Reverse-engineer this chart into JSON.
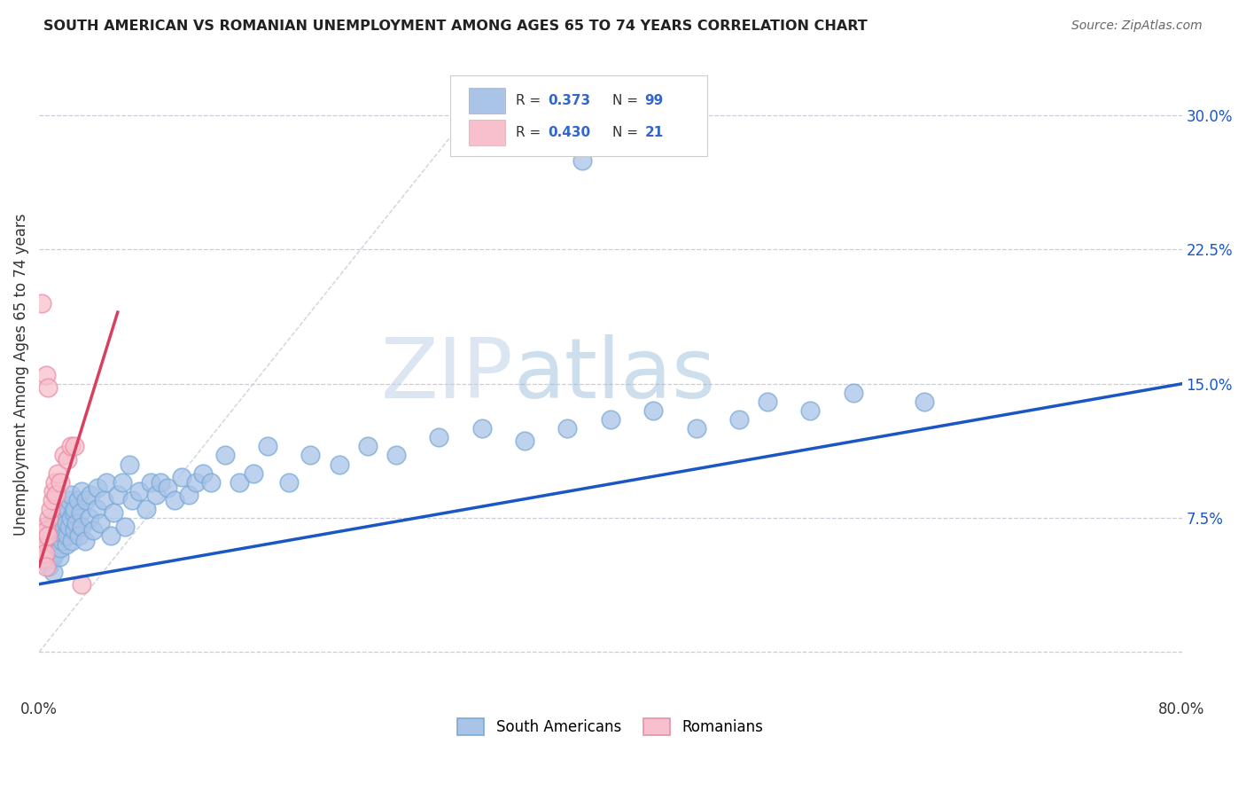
{
  "title": "SOUTH AMERICAN VS ROMANIAN UNEMPLOYMENT AMONG AGES 65 TO 74 YEARS CORRELATION CHART",
  "source": "Source: ZipAtlas.com",
  "ylabel": "Unemployment Among Ages 65 to 74 years",
  "xlim": [
    0.0,
    0.8
  ],
  "ylim": [
    -0.025,
    0.335
  ],
  "xticks": [
    0.0,
    0.1,
    0.2,
    0.3,
    0.4,
    0.5,
    0.6,
    0.7,
    0.8
  ],
  "xticklabels": [
    "0.0%",
    "",
    "",
    "",
    "",
    "",
    "",
    "",
    "80.0%"
  ],
  "ytick_right_labels": [
    "30.0%",
    "22.5%",
    "15.0%",
    "7.5%",
    ""
  ],
  "ytick_right_values": [
    0.3,
    0.225,
    0.15,
    0.075,
    0.0
  ],
  "color_south_american_face": "#aac4e8",
  "color_south_american_edge": "#7aaad8",
  "color_romanian_face": "#f8c0cc",
  "color_romanian_edge": "#e890a8",
  "color_line_blue": "#1a56c4",
  "color_line_red": "#d84060",
  "color_legend_text": "#3366cc",
  "color_grid": "#c8cdd8",
  "color_diag": "#c0c8d4",
  "watermark_zip": "ZIP",
  "watermark_atlas": "atlas",
  "south_american_x": [
    0.003,
    0.004,
    0.005,
    0.005,
    0.006,
    0.007,
    0.007,
    0.008,
    0.008,
    0.009,
    0.009,
    0.01,
    0.01,
    0.01,
    0.01,
    0.011,
    0.011,
    0.012,
    0.012,
    0.013,
    0.013,
    0.014,
    0.014,
    0.015,
    0.015,
    0.015,
    0.016,
    0.016,
    0.017,
    0.017,
    0.018,
    0.018,
    0.019,
    0.019,
    0.02,
    0.02,
    0.021,
    0.021,
    0.022,
    0.022,
    0.023,
    0.024,
    0.025,
    0.025,
    0.026,
    0.027,
    0.028,
    0.029,
    0.03,
    0.03,
    0.032,
    0.033,
    0.035,
    0.036,
    0.038,
    0.04,
    0.041,
    0.043,
    0.045,
    0.047,
    0.05,
    0.052,
    0.055,
    0.058,
    0.06,
    0.063,
    0.065,
    0.07,
    0.075,
    0.078,
    0.082,
    0.085,
    0.09,
    0.095,
    0.1,
    0.105,
    0.11,
    0.115,
    0.12,
    0.13,
    0.14,
    0.15,
    0.16,
    0.175,
    0.19,
    0.21,
    0.23,
    0.25,
    0.28,
    0.31,
    0.34,
    0.37,
    0.4,
    0.43,
    0.46,
    0.49,
    0.51,
    0.54,
    0.57
  ],
  "south_american_y": [
    0.055,
    0.06,
    0.065,
    0.05,
    0.068,
    0.048,
    0.06,
    0.055,
    0.072,
    0.058,
    0.052,
    0.07,
    0.064,
    0.058,
    0.045,
    0.068,
    0.055,
    0.075,
    0.062,
    0.07,
    0.058,
    0.065,
    0.053,
    0.072,
    0.068,
    0.058,
    0.075,
    0.062,
    0.07,
    0.082,
    0.065,
    0.078,
    0.06,
    0.072,
    0.08,
    0.065,
    0.085,
    0.07,
    0.075,
    0.088,
    0.062,
    0.078,
    0.068,
    0.08,
    0.072,
    0.085,
    0.065,
    0.078,
    0.09,
    0.07,
    0.062,
    0.085,
    0.075,
    0.088,
    0.068,
    0.08,
    0.092,
    0.072,
    0.085,
    0.095,
    0.065,
    0.078,
    0.088,
    0.095,
    0.07,
    0.105,
    0.085,
    0.09,
    0.08,
    0.095,
    0.088,
    0.095,
    0.092,
    0.085,
    0.098,
    0.088,
    0.095,
    0.1,
    0.095,
    0.11,
    0.095,
    0.1,
    0.115,
    0.095,
    0.11,
    0.105,
    0.115,
    0.11,
    0.12,
    0.125,
    0.118,
    0.125,
    0.13,
    0.135,
    0.125,
    0.13,
    0.14,
    0.135,
    0.145
  ],
  "south_american_outlier_x": [
    0.38
  ],
  "south_american_outlier_y": [
    0.275
  ],
  "south_american_high_x": [
    0.62
  ],
  "south_american_high_y": [
    0.14
  ],
  "romanian_x": [
    0.002,
    0.003,
    0.003,
    0.004,
    0.004,
    0.005,
    0.005,
    0.006,
    0.007,
    0.008,
    0.009,
    0.01,
    0.011,
    0.012,
    0.013,
    0.015,
    0.017,
    0.02,
    0.022,
    0.025,
    0.03
  ],
  "romanian_y": [
    0.058,
    0.063,
    0.052,
    0.07,
    0.055,
    0.068,
    0.048,
    0.065,
    0.075,
    0.08,
    0.085,
    0.09,
    0.095,
    0.088,
    0.1,
    0.095,
    0.11,
    0.108,
    0.115,
    0.115,
    0.038
  ],
  "romanian_outlier_x": [
    0.002
  ],
  "romanian_outlier_y": [
    0.195
  ],
  "romanian_high1_x": [
    0.005
  ],
  "romanian_high1_y": [
    0.155
  ],
  "romanian_high2_x": [
    0.006
  ],
  "romanian_high2_y": [
    0.148
  ],
  "blue_line_x": [
    0.0,
    0.8
  ],
  "blue_line_y": [
    0.038,
    0.15
  ],
  "red_line_x": [
    0.0,
    0.055
  ],
  "red_line_y": [
    0.048,
    0.19
  ],
  "diag_line_x": [
    0.0,
    0.3
  ],
  "diag_line_y": [
    0.0,
    0.3
  ]
}
